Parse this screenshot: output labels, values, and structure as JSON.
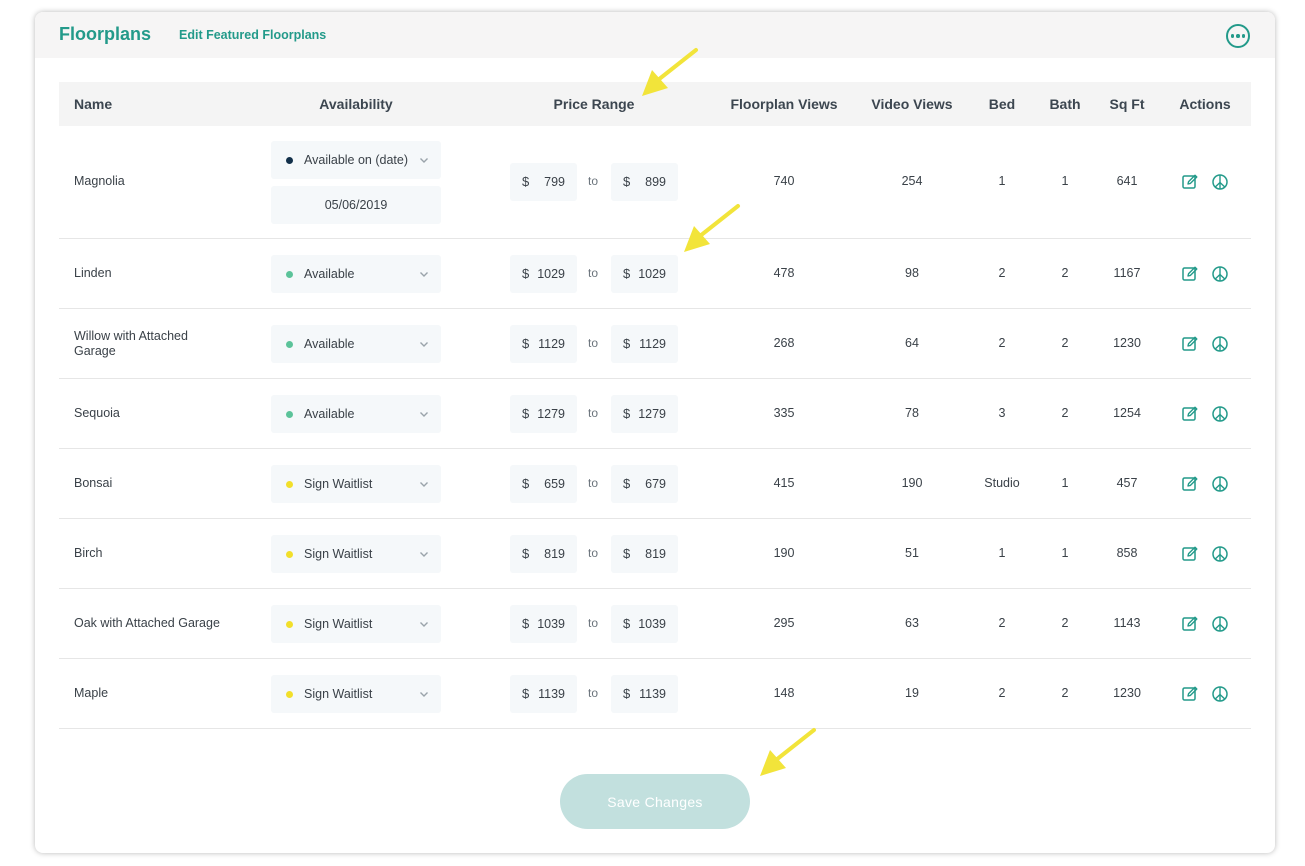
{
  "header": {
    "title": "Floorplans",
    "edit_featured_label": "Edit Featured Floorplans",
    "more_icon": "more-horizontal-circle-icon"
  },
  "columns": [
    "Name",
    "Availability",
    "Price Range",
    "Floorplan Views",
    "Video Views",
    "Bed",
    "Bath",
    "Sq Ft",
    "Actions"
  ],
  "rows": [
    {
      "name": "Magnolia",
      "availability": "Available on (date)",
      "status_color": "#12304a",
      "date": "05/06/2019",
      "price_from": "799",
      "price_to": "899",
      "floorplan_views": "740",
      "video_views": "254",
      "bed": "1",
      "bath": "1",
      "sqft": "641"
    },
    {
      "name": "Linden",
      "availability": "Available",
      "status_color": "#5cc39a",
      "price_from": "1029",
      "price_to": "1029",
      "floorplan_views": "478",
      "video_views": "98",
      "bed": "2",
      "bath": "2",
      "sqft": "1167"
    },
    {
      "name": "Willow with Attached Garage",
      "availability": "Available",
      "status_color": "#5cc39a",
      "price_from": "1129",
      "price_to": "1129",
      "floorplan_views": "268",
      "video_views": "64",
      "bed": "2",
      "bath": "2",
      "sqft": "1230"
    },
    {
      "name": "Sequoia",
      "availability": "Available",
      "status_color": "#5cc39a",
      "price_from": "1279",
      "price_to": "1279",
      "floorplan_views": "335",
      "video_views": "78",
      "bed": "3",
      "bath": "2",
      "sqft": "1254"
    },
    {
      "name": "Bonsai",
      "availability": "Sign Waitlist",
      "status_color": "#f2df2a",
      "price_from": "659",
      "price_to": "679",
      "floorplan_views": "415",
      "video_views": "190",
      "bed": "Studio",
      "bath": "1",
      "sqft": "457"
    },
    {
      "name": "Birch",
      "availability": "Sign Waitlist",
      "status_color": "#f2df2a",
      "price_from": "819",
      "price_to": "819",
      "floorplan_views": "190",
      "video_views": "51",
      "bed": "1",
      "bath": "1",
      "sqft": "858"
    },
    {
      "name": "Oak with Attached Garage",
      "availability": "Sign Waitlist",
      "status_color": "#f2df2a",
      "price_from": "1039",
      "price_to": "1039",
      "floorplan_views": "295",
      "video_views": "63",
      "bed": "2",
      "bath": "2",
      "sqft": "1143"
    },
    {
      "name": "Maple",
      "availability": "Sign Waitlist",
      "status_color": "#f2df2a",
      "price_from": "1139",
      "price_to": "1139",
      "floorplan_views": "148",
      "video_views": "19",
      "bed": "2",
      "bath": "2",
      "sqft": "1230"
    }
  ],
  "price": {
    "currency": "$",
    "separator": "to"
  },
  "actions": {
    "edit_icon": "edit-icon",
    "tour_icon": "peace-icon",
    "color": "#239a8a"
  },
  "save_button": {
    "label": "Save Changes",
    "enabled": false
  },
  "annotation_color": "#f2e43a",
  "colors": {
    "accent": "#239a8a",
    "header_bg": "#f6f5f5",
    "table_header_bg": "#f4f4f4",
    "input_bg": "#f5f8fa",
    "save_disabled": "#c2e0de"
  }
}
